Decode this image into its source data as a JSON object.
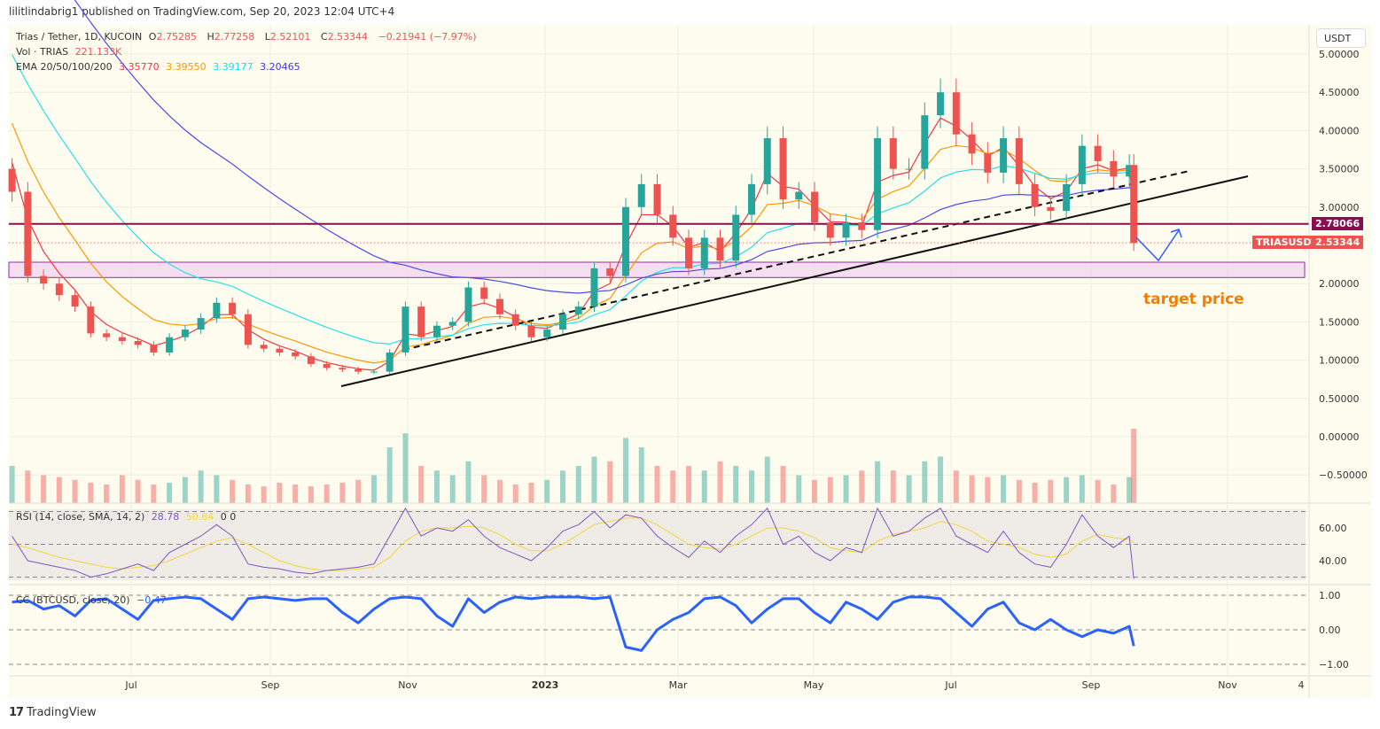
{
  "header": {
    "published": "lilitlindabrig1 published on TradingView.com, Sep 20, 2023 12:04 UTC+4"
  },
  "legend": {
    "symbol": "Trias / Tether, 1D, KUCOIN",
    "open_label": "O",
    "open": "2.75285",
    "high_label": "H",
    "high": "2.77258",
    "low_label": "L",
    "low": "2.52101",
    "close_label": "C",
    "close": "2.53344",
    "change": "−0.21941 (−7.97%)",
    "vol_label": "Vol · TRIAS",
    "vol": "221.133K",
    "ema_label": "EMA 20/50/100/200",
    "ema20": "3.35770",
    "ema50": "3.39550",
    "ema100": "3.39177",
    "ema200": "3.20465",
    "rsi_label": "RSI (14, close, SMA, 14, 2)",
    "rsi": "28.78",
    "rsi_sma": "50.84",
    "rsi_extra": "0 0",
    "cc_label": "CC (BTCUSD, close, 20)",
    "cc": "−0.47"
  },
  "currency_button": "USDT",
  "price_tags": {
    "level": "2.78066",
    "symbol": "TRIASUSDT",
    "last": "2.53344"
  },
  "annotation": {
    "target_text": "target price"
  },
  "branding": {
    "logo": "17",
    "name": "TradingView"
  },
  "colors": {
    "up": "#26a69a",
    "down": "#ef5350",
    "ema20": "#f23645",
    "ema50": "#ff9800",
    "ema100": "#26e0e8",
    "ema200": "#4b4bea",
    "rsi": "#7e57c2",
    "rsi_sma": "#f5d73a",
    "cc": "#2962ff",
    "level": "#880e4f",
    "zone": "#9c27b0",
    "target": "#f57c00"
  },
  "chart_data": {
    "type": "candlestick",
    "x_ticks": [
      "Jul",
      "Sep",
      "Nov",
      "2023",
      "Mar",
      "May",
      "Jul",
      "Sep",
      "Nov",
      "4"
    ],
    "price_ticks": [
      "5.00000",
      "4.50000",
      "4.00000",
      "3.50000",
      "3.00000",
      "2.00000",
      "1.50000",
      "1.00000",
      "0.50000",
      "0.00000",
      "−0.50000"
    ],
    "rsi_ticks": [
      "60.00",
      "40.00"
    ],
    "cc_ticks": [
      "1.00",
      "0.00",
      "−1.00"
    ],
    "dates": [
      "2022-05-09",
      "2022-05-16",
      "2022-05-23",
      "2022-05-30",
      "2022-06-06",
      "2022-06-13",
      "2022-06-20",
      "2022-06-27",
      "2022-07-04",
      "2022-07-11",
      "2022-07-18",
      "2022-07-25",
      "2022-08-01",
      "2022-08-08",
      "2022-08-15",
      "2022-08-22",
      "2022-08-29",
      "2022-09-05",
      "2022-09-12",
      "2022-09-19",
      "2022-09-26",
      "2022-10-03",
      "2022-10-10",
      "2022-10-17",
      "2022-10-24",
      "2022-10-31",
      "2022-11-07",
      "2022-11-14",
      "2022-11-21",
      "2022-11-28",
      "2022-12-05",
      "2022-12-12",
      "2022-12-19",
      "2022-12-26",
      "2023-01-02",
      "2023-01-09",
      "2023-01-16",
      "2023-01-23",
      "2023-01-30",
      "2023-02-06",
      "2023-02-13",
      "2023-02-20",
      "2023-02-27",
      "2023-03-06",
      "2023-03-13",
      "2023-03-20",
      "2023-03-27",
      "2023-04-03",
      "2023-04-10",
      "2023-04-17",
      "2023-04-24",
      "2023-05-01",
      "2023-05-08",
      "2023-05-15",
      "2023-05-22",
      "2023-05-29",
      "2023-06-05",
      "2023-06-12",
      "2023-06-19",
      "2023-06-26",
      "2023-07-03",
      "2023-07-10",
      "2023-07-17",
      "2023-07-24",
      "2023-07-31",
      "2023-08-07",
      "2023-08-14",
      "2023-08-21",
      "2023-08-28",
      "2023-09-04",
      "2023-09-11",
      "2023-09-18",
      "2023-09-20"
    ],
    "close": [
      3.2,
      2.1,
      2.0,
      1.85,
      1.7,
      1.35,
      1.3,
      1.25,
      1.2,
      1.1,
      1.3,
      1.4,
      1.55,
      1.75,
      1.6,
      1.2,
      1.15,
      1.1,
      1.05,
      0.95,
      0.9,
      0.88,
      0.85,
      0.85,
      1.1,
      1.7,
      1.3,
      1.45,
      1.5,
      1.95,
      1.8,
      1.6,
      1.45,
      1.3,
      1.4,
      1.6,
      1.7,
      2.2,
      2.1,
      3.0,
      3.3,
      2.9,
      2.6,
      2.2,
      2.6,
      2.3,
      2.9,
      3.3,
      3.9,
      3.1,
      3.2,
      2.8,
      2.6,
      2.8,
      2.7,
      3.9,
      3.5,
      3.5,
      4.2,
      4.5,
      3.95,
      3.7,
      3.45,
      3.9,
      3.3,
      3.0,
      2.95,
      3.3,
      3.8,
      3.6,
      3.4,
      3.55,
      2.53
    ],
    "volume": [
      40,
      35,
      30,
      28,
      25,
      22,
      20,
      30,
      25,
      20,
      22,
      28,
      35,
      30,
      25,
      20,
      18,
      22,
      20,
      18,
      20,
      22,
      25,
      30,
      60,
      75,
      40,
      35,
      30,
      45,
      30,
      25,
      20,
      22,
      25,
      35,
      40,
      50,
      45,
      70,
      60,
      40,
      35,
      40,
      35,
      45,
      40,
      35,
      50,
      40,
      30,
      25,
      28,
      30,
      35,
      45,
      35,
      30,
      45,
      50,
      35,
      30,
      28,
      30,
      25,
      22,
      25,
      28,
      30,
      25,
      20,
      28,
      80
    ],
    "rsi": [
      55,
      40,
      38,
      36,
      34,
      30,
      32,
      35,
      38,
      34,
      45,
      50,
      55,
      62,
      55,
      38,
      36,
      35,
      33,
      32,
      34,
      35,
      36,
      38,
      55,
      72,
      55,
      60,
      58,
      65,
      55,
      48,
      44,
      40,
      48,
      58,
      62,
      70,
      60,
      68,
      66,
      55,
      48,
      42,
      52,
      45,
      55,
      62,
      72,
      50,
      55,
      45,
      40,
      48,
      45,
      72,
      55,
      58,
      66,
      72,
      55,
      50,
      45,
      58,
      45,
      38,
      36,
      50,
      68,
      55,
      48,
      55,
      29
    ],
    "rsi_sma": [
      50,
      48,
      45,
      42,
      40,
      38,
      36,
      35,
      36,
      37,
      40,
      44,
      48,
      52,
      54,
      50,
      45,
      40,
      37,
      35,
      34,
      34,
      35,
      36,
      42,
      52,
      58,
      60,
      60,
      61,
      60,
      56,
      50,
      46,
      46,
      50,
      56,
      62,
      64,
      66,
      66,
      62,
      56,
      50,
      48,
      47,
      50,
      55,
      60,
      60,
      58,
      54,
      48,
      46,
      45,
      52,
      56,
      58,
      60,
      64,
      62,
      58,
      52,
      50,
      48,
      44,
      42,
      44,
      52,
      56,
      54,
      53,
      50.84
    ],
    "cc": [
      0.8,
      0.85,
      0.6,
      0.7,
      0.4,
      0.85,
      0.9,
      0.6,
      0.3,
      0.85,
      0.9,
      0.95,
      0.9,
      0.6,
      0.3,
      0.9,
      0.95,
      0.9,
      0.85,
      0.9,
      0.9,
      0.5,
      0.2,
      0.6,
      0.9,
      0.95,
      0.9,
      0.4,
      0.1,
      0.9,
      0.5,
      0.8,
      0.95,
      0.9,
      0.95,
      0.95,
      0.95,
      0.9,
      0.95,
      -0.5,
      -0.6,
      0.0,
      0.3,
      0.5,
      0.9,
      0.95,
      0.7,
      0.2,
      0.6,
      0.9,
      0.9,
      0.5,
      0.2,
      0.8,
      0.6,
      0.3,
      0.8,
      0.95,
      0.95,
      0.9,
      0.5,
      0.1,
      0.6,
      0.8,
      0.2,
      0.0,
      0.3,
      0.0,
      -0.2,
      0.0,
      -0.1,
      0.1,
      -0.47
    ],
    "horizontal_level": 2.78066,
    "zone": [
      2.08,
      2.28
    ],
    "last_price": 2.53344,
    "y_range": [
      -0.7,
      5.3
    ]
  }
}
